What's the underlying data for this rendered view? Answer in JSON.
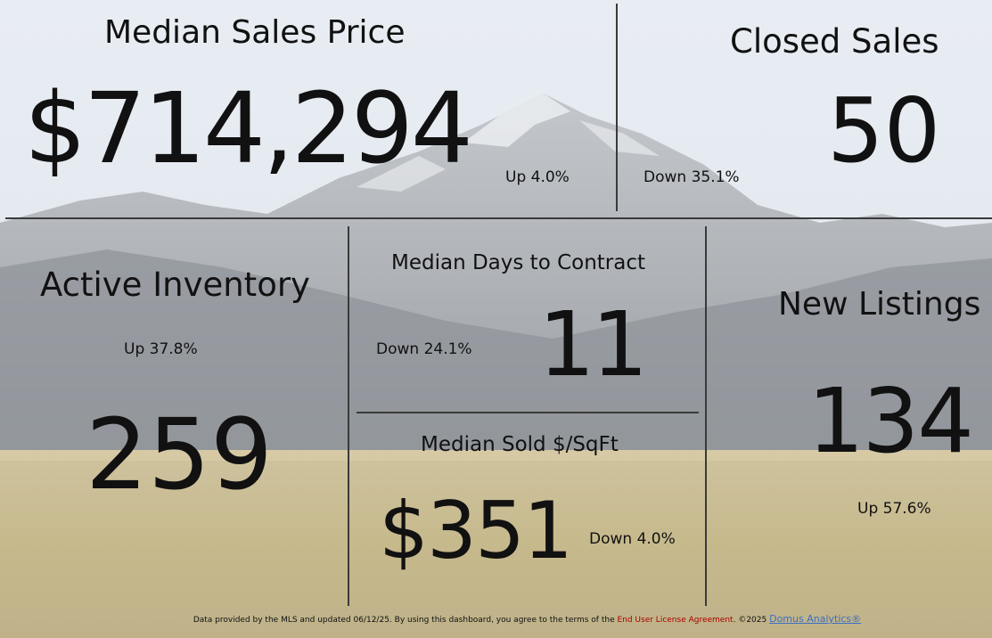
{
  "median_sales_price": {
    "title": "Median Sales Price",
    "value": "$714,294",
    "change": "Up 4.0%"
  },
  "closed_sales": {
    "title": "Closed Sales",
    "value": "50",
    "change": "Down 35.1%"
  },
  "active_inventory": {
    "title": "Active Inventory",
    "value": "259",
    "change": "Up 37.8%"
  },
  "median_days_to_contract": {
    "title": "Median Days to Contract",
    "value": "11",
    "change": "Down 24.1%"
  },
  "median_sold_sqft": {
    "title": "Median Sold $/SqFt",
    "value": "$351",
    "change": "Down 4.0%"
  },
  "new_listings": {
    "title": "New Listings",
    "value": "134",
    "change": "Up 57.6%"
  },
  "footer": {
    "text1": "Data provided by the MLS and updated 06/12/25.  By using this dashboard, you agree to the terms of the ",
    "license": "End User License Agreement",
    "text2": ".  ©2025 ",
    "brand": "Domus Analytics®"
  },
  "colors": {
    "sky": "#dfe6ee",
    "mountain": "#a9adb1",
    "field": "#c9b98a",
    "divider": "#3a3a3a",
    "license": "#aa0000",
    "brand": "#3a6fc4"
  }
}
